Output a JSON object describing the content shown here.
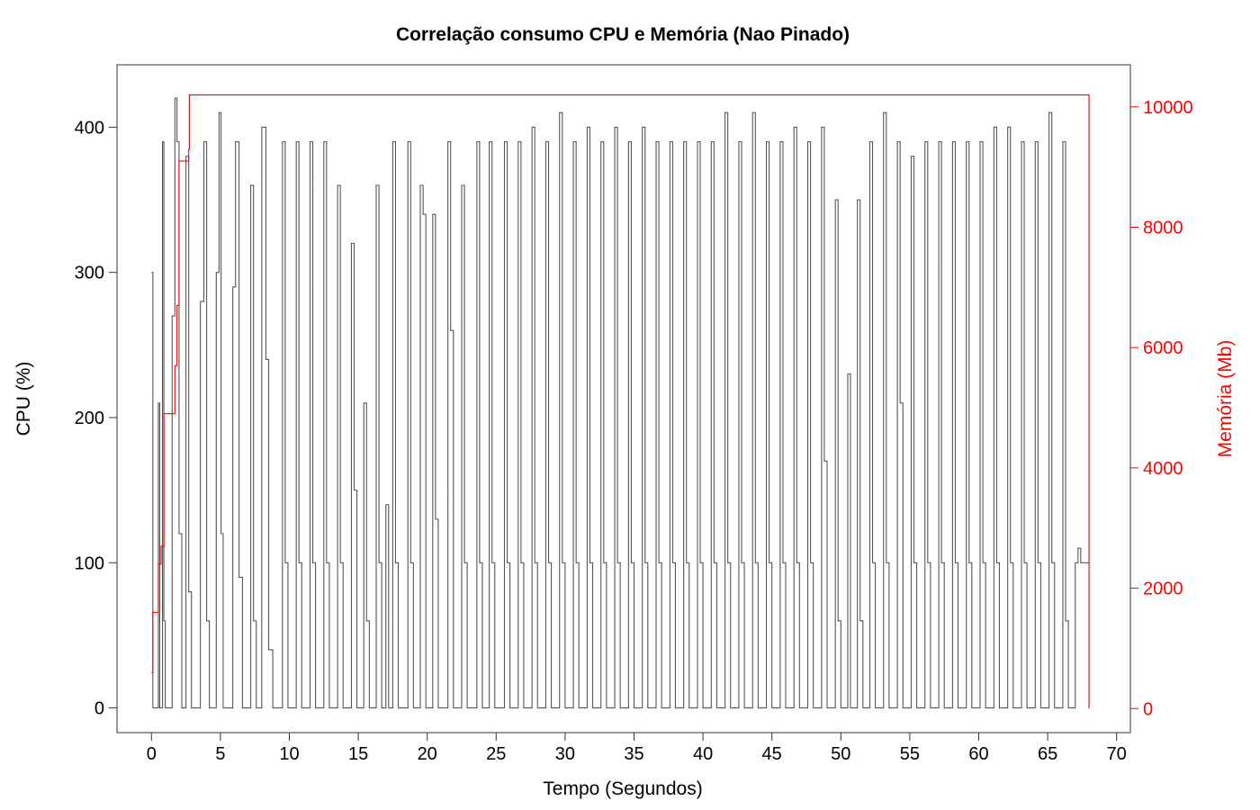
{
  "chart_data": {
    "type": "line",
    "title": "Correlação consumo CPU e Memória (Nao Pinado)",
    "xlabel": "Tempo (Segundos)",
    "ylabel": "CPU (%)",
    "y2label": "Memória (Mb)",
    "xlim": [
      -2.5,
      71
    ],
    "ylim": [
      -17,
      443
    ],
    "y2lim": [
      -400,
      10700
    ],
    "x_ticks": [
      0,
      5,
      10,
      15,
      20,
      25,
      30,
      35,
      40,
      45,
      50,
      55,
      60,
      65,
      70
    ],
    "x_tick_labels": [
      "0",
      "5",
      "10",
      "15",
      "20",
      "25",
      "30",
      "35",
      "40",
      "45",
      "50",
      "55",
      "60",
      "65",
      "70"
    ],
    "y_ticks": [
      0,
      100,
      200,
      300,
      400
    ],
    "y_tick_labels": [
      "0",
      "100",
      "200",
      "300",
      "400"
    ],
    "y2_ticks": [
      0,
      2000,
      4000,
      6000,
      8000,
      10000
    ],
    "y2_tick_labels": [
      "0",
      "2000",
      "4000",
      "6000",
      "8000",
      "10000"
    ],
    "grid": false,
    "series": [
      {
        "axis": "left",
        "color": "#555555",
        "step": true,
        "points": [
          [
            0.0,
            300
          ],
          [
            0.1,
            0
          ],
          [
            0.5,
            210
          ],
          [
            0.6,
            0
          ],
          [
            0.8,
            390
          ],
          [
            0.9,
            60
          ],
          [
            1.0,
            0
          ],
          [
            1.3,
            0
          ],
          [
            1.5,
            270
          ],
          [
            1.7,
            420
          ],
          [
            1.85,
            390
          ],
          [
            2.0,
            120
          ],
          [
            2.2,
            0
          ],
          [
            2.5,
            380
          ],
          [
            2.7,
            80
          ],
          [
            2.9,
            0
          ],
          [
            3.3,
            0
          ],
          [
            3.55,
            280
          ],
          [
            3.8,
            390
          ],
          [
            4.0,
            60
          ],
          [
            4.2,
            0
          ],
          [
            4.5,
            0
          ],
          [
            4.7,
            300
          ],
          [
            4.9,
            410
          ],
          [
            5.05,
            120
          ],
          [
            5.2,
            0
          ],
          [
            5.7,
            0
          ],
          [
            5.9,
            290
          ],
          [
            6.1,
            390
          ],
          [
            6.35,
            90
          ],
          [
            6.6,
            0
          ],
          [
            7.0,
            0
          ],
          [
            7.2,
            360
          ],
          [
            7.4,
            60
          ],
          [
            7.6,
            0
          ],
          [
            8.0,
            400
          ],
          [
            8.3,
            240
          ],
          [
            8.5,
            40
          ],
          [
            8.8,
            0
          ],
          [
            9.3,
            0
          ],
          [
            9.5,
            390
          ],
          [
            9.7,
            100
          ],
          [
            9.9,
            0
          ],
          [
            10.3,
            0
          ],
          [
            10.5,
            390
          ],
          [
            10.7,
            100
          ],
          [
            10.9,
            0
          ],
          [
            11.3,
            0
          ],
          [
            11.5,
            390
          ],
          [
            11.7,
            100
          ],
          [
            11.9,
            0
          ],
          [
            12.3,
            0
          ],
          [
            12.5,
            390
          ],
          [
            12.7,
            100
          ],
          [
            12.9,
            0
          ],
          [
            13.3,
            0
          ],
          [
            13.5,
            360
          ],
          [
            13.7,
            100
          ],
          [
            13.9,
            0
          ],
          [
            14.3,
            0
          ],
          [
            14.5,
            320
          ],
          [
            14.7,
            150
          ],
          [
            14.9,
            0
          ],
          [
            15.2,
            0
          ],
          [
            15.4,
            210
          ],
          [
            15.6,
            60
          ],
          [
            15.8,
            0
          ],
          [
            16.1,
            0
          ],
          [
            16.3,
            360
          ],
          [
            16.5,
            100
          ],
          [
            16.7,
            0
          ],
          [
            17.0,
            140
          ],
          [
            17.2,
            0
          ],
          [
            17.5,
            390
          ],
          [
            17.7,
            100
          ],
          [
            17.9,
            0
          ],
          [
            18.4,
            0
          ],
          [
            18.6,
            390
          ],
          [
            18.8,
            100
          ],
          [
            19.0,
            0
          ],
          [
            19.5,
            360
          ],
          [
            19.7,
            340
          ],
          [
            19.9,
            0
          ],
          [
            20.2,
            0
          ],
          [
            20.4,
            340
          ],
          [
            20.6,
            130
          ],
          [
            20.8,
            0
          ],
          [
            21.3,
            0
          ],
          [
            21.5,
            390
          ],
          [
            21.7,
            260
          ],
          [
            21.9,
            0
          ],
          [
            22.5,
            360
          ],
          [
            22.7,
            100
          ],
          [
            22.9,
            0
          ],
          [
            23.4,
            0
          ],
          [
            23.6,
            390
          ],
          [
            23.8,
            100
          ],
          [
            24.0,
            0
          ],
          [
            24.5,
            390
          ],
          [
            24.7,
            100
          ],
          [
            24.9,
            0
          ],
          [
            25.4,
            0
          ],
          [
            25.6,
            390
          ],
          [
            25.8,
            100
          ],
          [
            26.0,
            0
          ],
          [
            26.4,
            0
          ],
          [
            26.6,
            390
          ],
          [
            26.8,
            100
          ],
          [
            27.0,
            0
          ],
          [
            27.4,
            0
          ],
          [
            27.6,
            400
          ],
          [
            27.8,
            100
          ],
          [
            28.0,
            0
          ],
          [
            28.4,
            0
          ],
          [
            28.6,
            390
          ],
          [
            28.8,
            100
          ],
          [
            29.0,
            0
          ],
          [
            29.4,
            0
          ],
          [
            29.6,
            410
          ],
          [
            29.8,
            100
          ],
          [
            30.0,
            0
          ],
          [
            30.4,
            0
          ],
          [
            30.6,
            390
          ],
          [
            30.8,
            100
          ],
          [
            31.0,
            0
          ],
          [
            31.4,
            0
          ],
          [
            31.6,
            400
          ],
          [
            31.8,
            100
          ],
          [
            32.0,
            0
          ],
          [
            32.4,
            0
          ],
          [
            32.6,
            390
          ],
          [
            32.8,
            100
          ],
          [
            33.0,
            0
          ],
          [
            33.4,
            0
          ],
          [
            33.6,
            400
          ],
          [
            33.8,
            100
          ],
          [
            34.0,
            0
          ],
          [
            34.4,
            0
          ],
          [
            34.6,
            390
          ],
          [
            34.8,
            100
          ],
          [
            35.0,
            0
          ],
          [
            35.4,
            0
          ],
          [
            35.6,
            400
          ],
          [
            35.8,
            100
          ],
          [
            36.0,
            0
          ],
          [
            36.4,
            0
          ],
          [
            36.6,
            390
          ],
          [
            36.8,
            100
          ],
          [
            37.0,
            0
          ],
          [
            37.4,
            0
          ],
          [
            37.6,
            390
          ],
          [
            37.8,
            100
          ],
          [
            38.0,
            0
          ],
          [
            38.4,
            0
          ],
          [
            38.6,
            390
          ],
          [
            38.8,
            100
          ],
          [
            39.0,
            0
          ],
          [
            39.4,
            0
          ],
          [
            39.6,
            390
          ],
          [
            39.8,
            100
          ],
          [
            40.0,
            0
          ],
          [
            40.4,
            0
          ],
          [
            40.6,
            390
          ],
          [
            40.8,
            100
          ],
          [
            41.0,
            0
          ],
          [
            41.4,
            0
          ],
          [
            41.6,
            410
          ],
          [
            41.8,
            100
          ],
          [
            42.0,
            0
          ],
          [
            42.4,
            0
          ],
          [
            42.6,
            390
          ],
          [
            42.8,
            100
          ],
          [
            43.0,
            0
          ],
          [
            43.4,
            0
          ],
          [
            43.6,
            410
          ],
          [
            43.8,
            100
          ],
          [
            44.0,
            0
          ],
          [
            44.4,
            0
          ],
          [
            44.6,
            390
          ],
          [
            44.8,
            100
          ],
          [
            45.0,
            0
          ],
          [
            45.4,
            0
          ],
          [
            45.6,
            390
          ],
          [
            45.8,
            100
          ],
          [
            46.0,
            0
          ],
          [
            46.4,
            0
          ],
          [
            46.6,
            400
          ],
          [
            46.8,
            100
          ],
          [
            47.0,
            0
          ],
          [
            47.4,
            0
          ],
          [
            47.6,
            390
          ],
          [
            47.8,
            100
          ],
          [
            48.0,
            0
          ],
          [
            48.4,
            0
          ],
          [
            48.6,
            400
          ],
          [
            48.8,
            170
          ],
          [
            49.0,
            0
          ],
          [
            49.4,
            0
          ],
          [
            49.6,
            350
          ],
          [
            49.8,
            60
          ],
          [
            50.0,
            0
          ],
          [
            50.3,
            0
          ],
          [
            50.5,
            230
          ],
          [
            50.7,
            0
          ],
          [
            51.0,
            0
          ],
          [
            51.2,
            350
          ],
          [
            51.4,
            60
          ],
          [
            51.6,
            0
          ],
          [
            51.9,
            0
          ],
          [
            52.1,
            390
          ],
          [
            52.3,
            100
          ],
          [
            52.5,
            0
          ],
          [
            52.9,
            0
          ],
          [
            53.1,
            410
          ],
          [
            53.3,
            100
          ],
          [
            53.5,
            0
          ],
          [
            53.9,
            0
          ],
          [
            54.1,
            390
          ],
          [
            54.3,
            210
          ],
          [
            54.5,
            0
          ],
          [
            54.9,
            0
          ],
          [
            55.1,
            380
          ],
          [
            55.3,
            100
          ],
          [
            55.5,
            0
          ],
          [
            55.9,
            0
          ],
          [
            56.1,
            390
          ],
          [
            56.3,
            100
          ],
          [
            56.5,
            0
          ],
          [
            56.9,
            0
          ],
          [
            57.1,
            390
          ],
          [
            57.3,
            100
          ],
          [
            57.5,
            0
          ],
          [
            57.9,
            0
          ],
          [
            58.1,
            390
          ],
          [
            58.3,
            100
          ],
          [
            58.5,
            0
          ],
          [
            58.9,
            0
          ],
          [
            59.1,
            390
          ],
          [
            59.3,
            100
          ],
          [
            59.5,
            0
          ],
          [
            59.9,
            0
          ],
          [
            60.1,
            390
          ],
          [
            60.3,
            100
          ],
          [
            60.5,
            0
          ],
          [
            60.9,
            0
          ],
          [
            61.1,
            400
          ],
          [
            61.3,
            100
          ],
          [
            61.5,
            0
          ],
          [
            61.9,
            0
          ],
          [
            62.1,
            400
          ],
          [
            62.3,
            100
          ],
          [
            62.5,
            0
          ],
          [
            62.9,
            0
          ],
          [
            63.1,
            390
          ],
          [
            63.3,
            100
          ],
          [
            63.5,
            0
          ],
          [
            63.9,
            0
          ],
          [
            64.1,
            390
          ],
          [
            64.3,
            100
          ],
          [
            64.5,
            0
          ],
          [
            64.9,
            0
          ],
          [
            65.1,
            410
          ],
          [
            65.3,
            100
          ],
          [
            65.5,
            0
          ],
          [
            65.9,
            0
          ],
          [
            66.1,
            390
          ],
          [
            66.3,
            60
          ],
          [
            66.5,
            0
          ],
          [
            67.0,
            100
          ],
          [
            67.2,
            110
          ],
          [
            67.4,
            100
          ],
          [
            68.0,
            100
          ]
        ]
      },
      {
        "axis": "right",
        "color": "#ff0000",
        "step": true,
        "points": [
          [
            0.0,
            600
          ],
          [
            0.1,
            1600
          ],
          [
            0.5,
            2400
          ],
          [
            0.7,
            2700
          ],
          [
            0.9,
            4900
          ],
          [
            1.7,
            5700
          ],
          [
            1.85,
            6700
          ],
          [
            2.0,
            9100
          ],
          [
            2.7,
            9300
          ],
          [
            2.75,
            10200
          ],
          [
            68.0,
            10200
          ],
          [
            68.0,
            0
          ]
        ]
      }
    ]
  }
}
